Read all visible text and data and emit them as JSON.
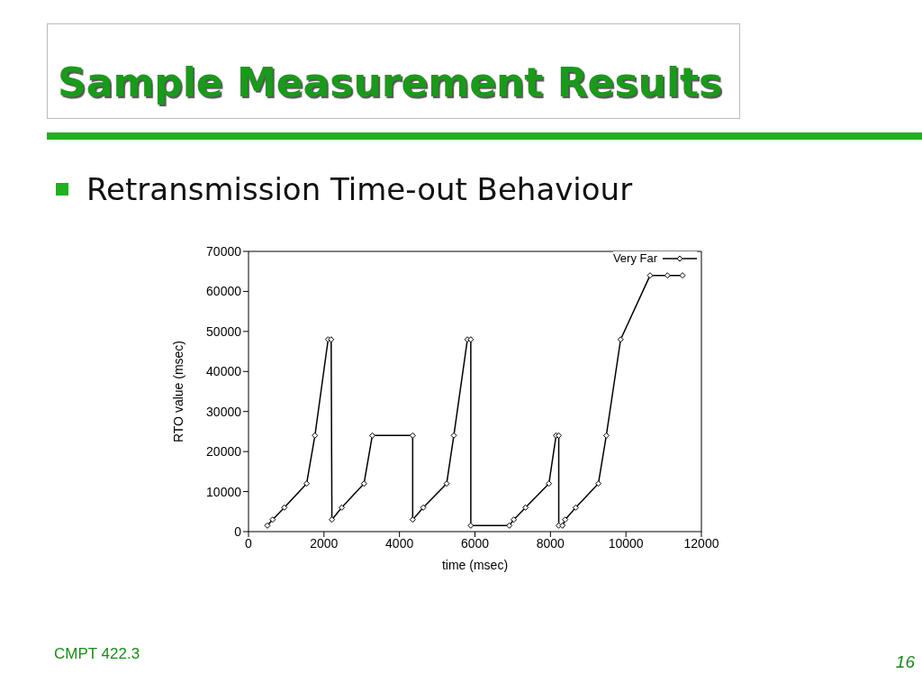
{
  "chart_data": {
    "type": "line",
    "title": "Sample Measurement Results",
    "subtitle": "Retransmission Time-out Behaviour",
    "xlabel": "time (msec)",
    "ylabel": "RTO value (msec)",
    "annotations": [
      "CMPT 422.3",
      "16"
    ],
    "x": [
      500,
      640,
      950,
      1540,
      1760,
      2110,
      2190,
      2210,
      2470,
      3060,
      3280,
      4350,
      4350,
      4630,
      5250,
      5440,
      5800,
      5890,
      5890,
      6910,
      7030,
      7340,
      7960,
      8150,
      8220,
      8220,
      8320,
      8390,
      8670,
      9270,
      9480,
      9860,
      10640,
      11100,
      11500
    ],
    "series": [
      {
        "name": "Very Far",
        "color": "#000000",
        "values": [
          1500,
          3000,
          6000,
          12000,
          24000,
          48000,
          48000,
          3000,
          6000,
          12000,
          24000,
          24000,
          3000,
          6000,
          12000,
          24000,
          48000,
          48000,
          1500,
          1500,
          3000,
          6000,
          12000,
          24000,
          24000,
          1500,
          1500,
          3000,
          6000,
          12000,
          24000,
          48000,
          64000,
          64000,
          64000
        ]
      }
    ],
    "xlim": [
      0,
      12000
    ],
    "xticks": [
      0,
      2000,
      4000,
      6000,
      8000,
      10000,
      12000
    ],
    "ylim": [
      0,
      70000
    ],
    "yticks": [
      0,
      10000,
      20000,
      30000,
      40000,
      50000,
      60000,
      70000
    ],
    "legend": "top right",
    "marker": "diamond",
    "line_style": "solid"
  }
}
